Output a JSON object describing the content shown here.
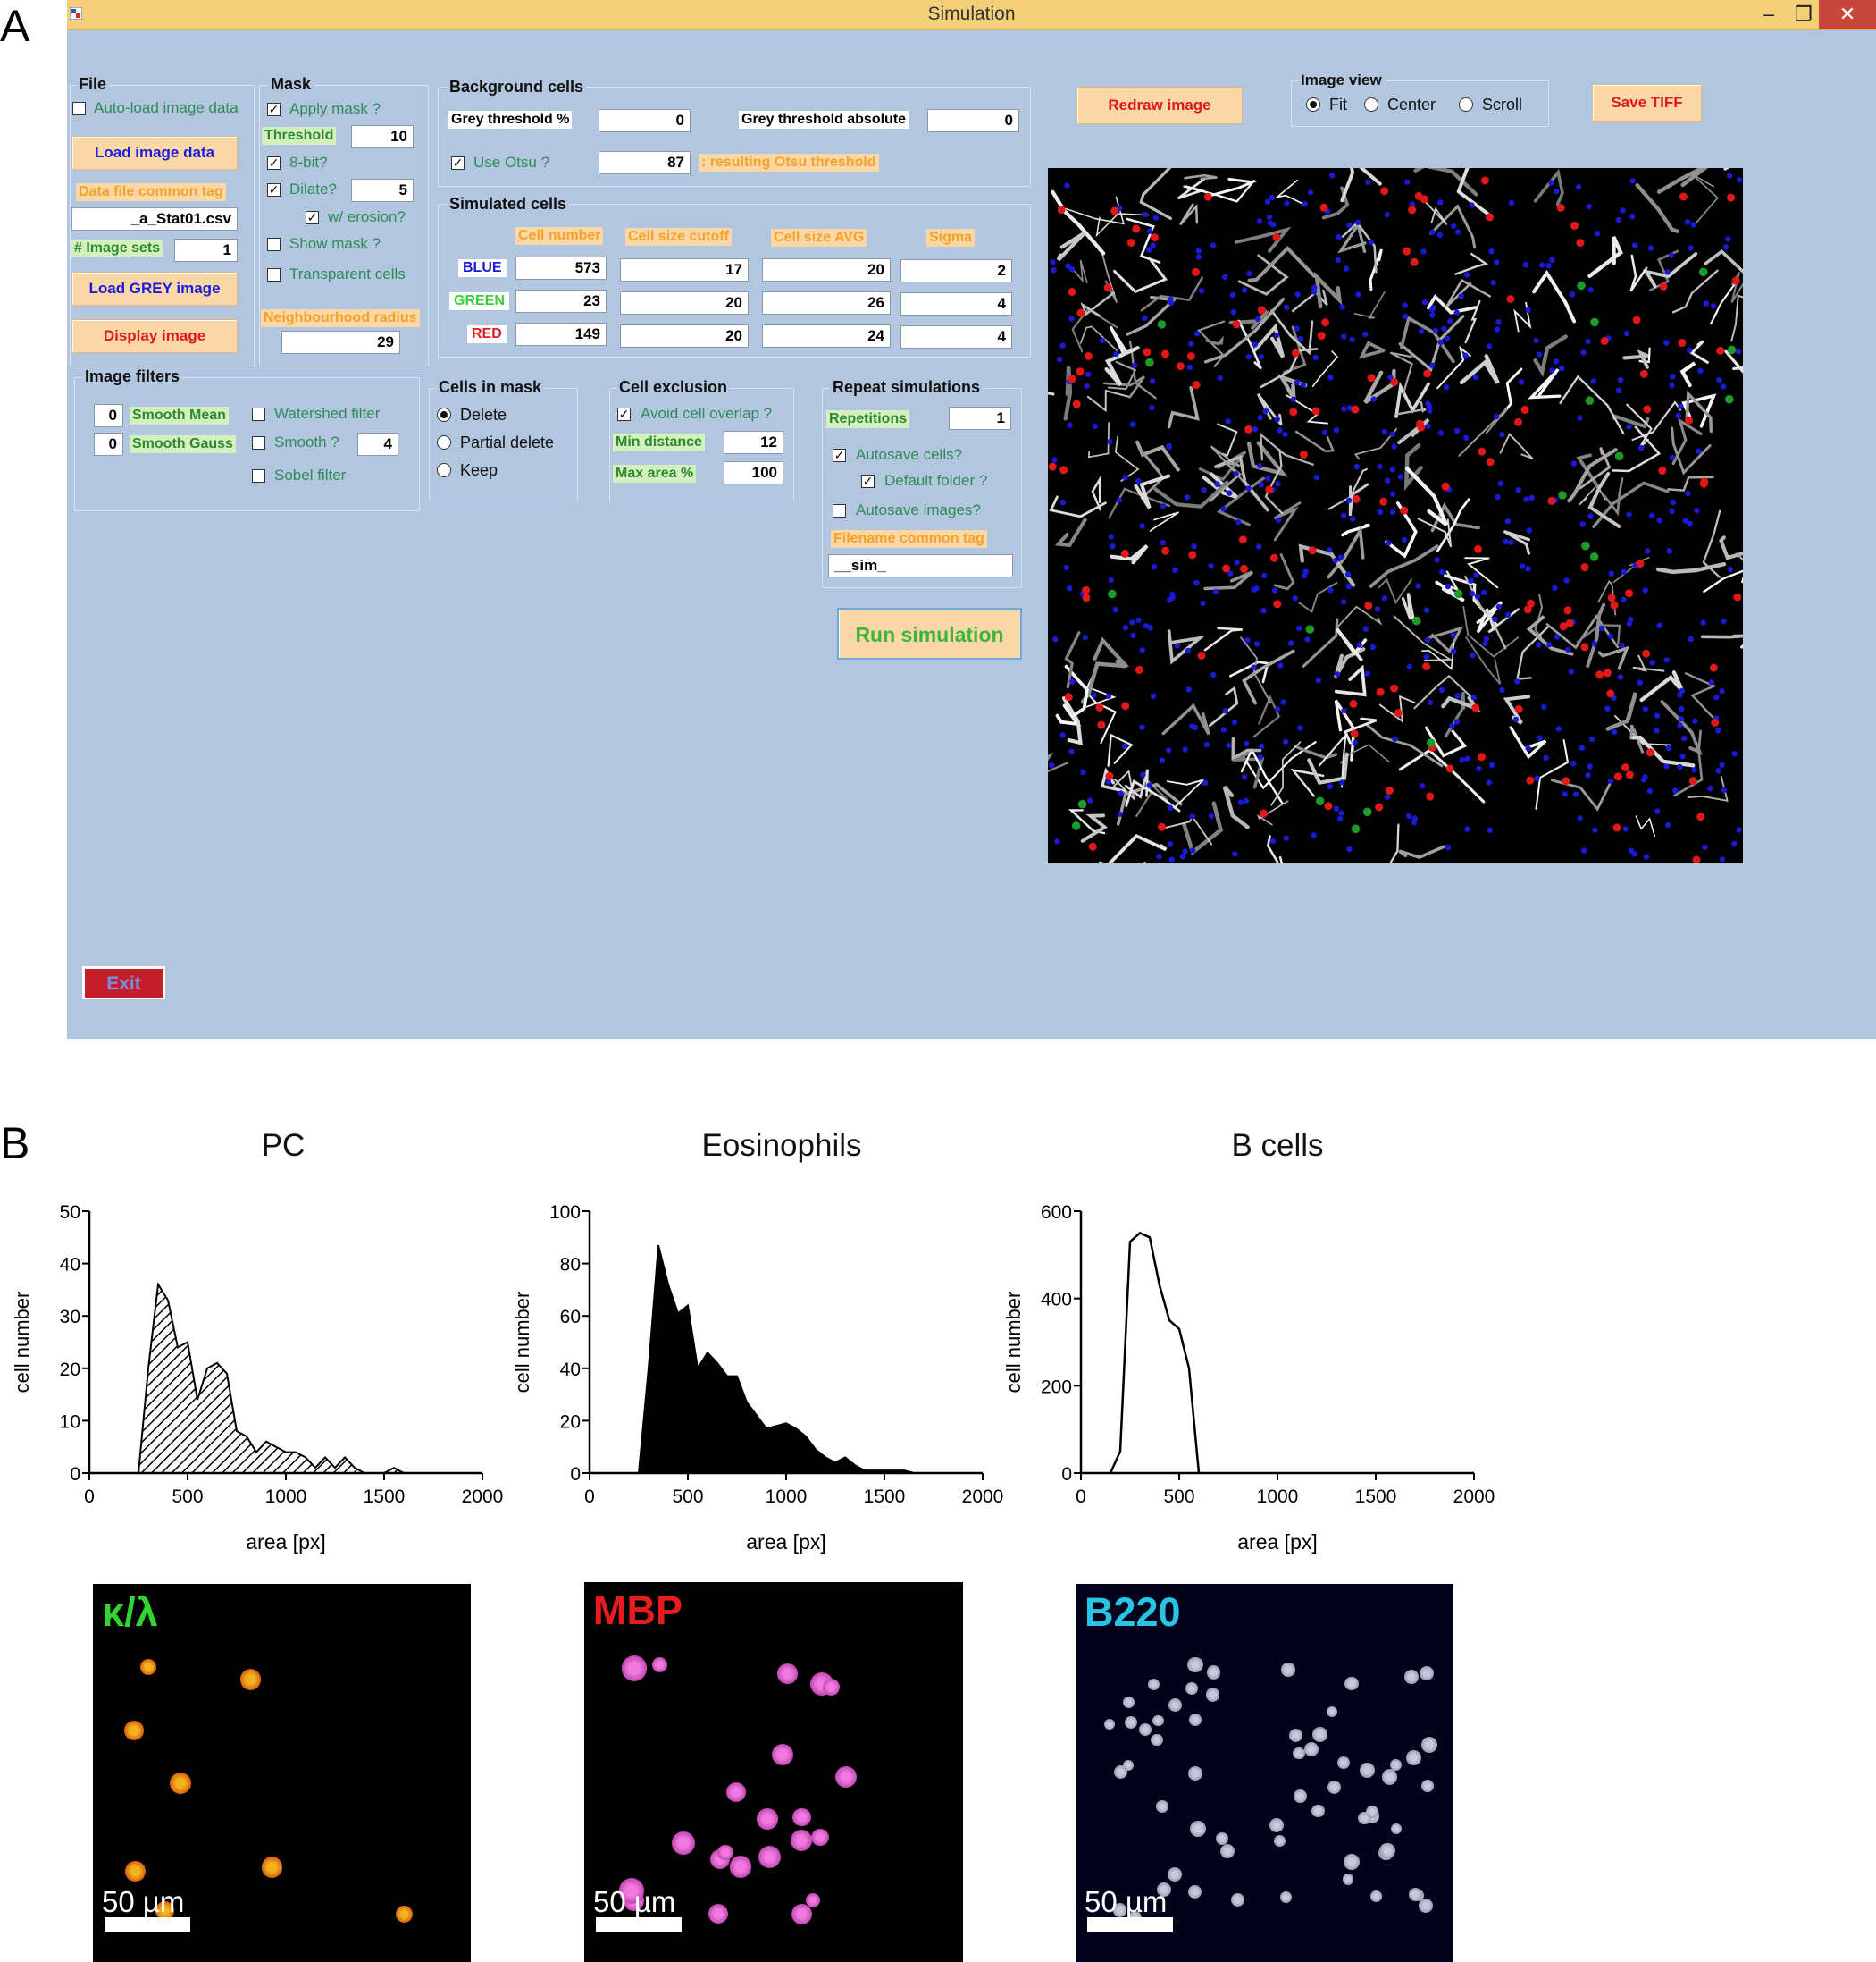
{
  "panel_labels": {
    "a": "A",
    "b": "B"
  },
  "window": {
    "title": "Simulation",
    "controls": {
      "minimize": "–",
      "restore": "❐",
      "close": "✕"
    }
  },
  "file": {
    "label": "File",
    "autoload_label": "Auto-load image data",
    "autoload_checked": false,
    "load_image_data": "Load image data",
    "data_file_tag_label": "Data file common tag",
    "data_file_tag_value": "_a_Stat01.csv",
    "image_sets_label": "# Image sets",
    "image_sets_value": "1",
    "load_grey": "Load GREY image",
    "display_image": "Display image"
  },
  "mask": {
    "label": "Mask",
    "apply_mask": "Apply mask ?",
    "threshold_label": "Threshold",
    "threshold_value": "10",
    "eight_bit": "8-bit?",
    "dilate": "Dilate?",
    "dilate_value": "5",
    "erosion": "w/ erosion?",
    "show_mask": "Show mask ?",
    "transparent_cells": "Transparent cells",
    "neighbourhood_label": "Neighbourhood radius",
    "neighbourhood_value": "29"
  },
  "background": {
    "label": "Background cells",
    "grey_pct_label": "Grey threshold %",
    "grey_pct_value": "0",
    "grey_abs_label": "Grey threshold absolute",
    "grey_abs_value": "0",
    "use_otsu": "Use Otsu ?",
    "otsu_value": "87",
    "otsu_result_label": ": resulting Otsu threshold"
  },
  "simulated": {
    "label": "Simulated cells",
    "headers": [
      "Cell number",
      "Cell size cutoff",
      "Cell size AVG",
      "Sigma"
    ],
    "rows": [
      {
        "name": "BLUE",
        "color": "#1a1ad0",
        "values": [
          "573",
          "17",
          "20",
          "2"
        ]
      },
      {
        "name": "GREEN",
        "color": "#3ccc3c",
        "values": [
          "23",
          "20",
          "26",
          "4"
        ]
      },
      {
        "name": "RED",
        "color": "#e01a1a",
        "values": [
          "149",
          "20",
          "24",
          "4"
        ]
      }
    ]
  },
  "image_filters": {
    "label": "Image filters",
    "smooth_mean_value": "0",
    "smooth_mean_label": "Smooth Mean",
    "smooth_gauss_value": "0",
    "smooth_gauss_label": "Smooth Gauss",
    "watershed": "Watershed filter",
    "smooth": "Smooth ?",
    "smooth_value": "4",
    "sobel": "Sobel filter"
  },
  "cells_in_mask": {
    "label": "Cells in mask",
    "options": [
      "Delete",
      "Partial delete",
      "Keep"
    ],
    "selected": "Delete"
  },
  "cell_exclusion": {
    "label": "Cell exclusion",
    "avoid_overlap": "Avoid cell overlap ?",
    "min_distance_label": "Min distance",
    "min_distance_value": "12",
    "max_area_label": "Max area %",
    "max_area_value": "100"
  },
  "repeat": {
    "label": "Repeat simulations",
    "repetitions_label": "Repetitions",
    "repetitions_value": "1",
    "autosave_cells": "Autosave cells?",
    "default_folder": "Default folder ?",
    "autosave_images": "Autosave images?",
    "filename_tag_label": "Filename common tag",
    "filename_tag_value": "__sim_",
    "run": "Run simulation"
  },
  "toolbar": {
    "redraw": "Redraw image",
    "image_view_label": "Image view",
    "view_options": [
      "Fit",
      "Center",
      "Scroll"
    ],
    "view_selected": "Fit",
    "save_tiff": "Save TIFF"
  },
  "exit": "Exit",
  "chart_data": [
    {
      "type": "area",
      "title": "PC",
      "xlabel": "area [px]",
      "ylabel": "cell number",
      "xlim": [
        0,
        2000
      ],
      "ylim": [
        0,
        50
      ],
      "xticks": [
        0,
        500,
        1000,
        1500,
        2000
      ],
      "yticks": [
        0,
        10,
        20,
        30,
        40,
        50
      ],
      "fill": "hatched",
      "x": [
        250,
        300,
        350,
        400,
        450,
        500,
        550,
        600,
        650,
        700,
        750,
        800,
        850,
        900,
        950,
        1000,
        1050,
        1100,
        1150,
        1200,
        1250,
        1300,
        1350,
        1400,
        1450,
        1500,
        1550,
        1600
      ],
      "y": [
        0,
        20,
        36,
        33,
        24,
        25,
        14,
        20,
        21,
        19,
        8,
        7,
        4,
        6,
        5,
        4,
        4,
        3,
        1,
        3,
        1,
        3,
        1,
        0,
        0,
        0,
        1,
        0
      ]
    },
    {
      "type": "area",
      "title": "Eosinophils",
      "xlabel": "area [px]",
      "ylabel": "cell number",
      "xlim": [
        0,
        2000
      ],
      "ylim": [
        0,
        100
      ],
      "xticks": [
        0,
        500,
        1000,
        1500,
        2000
      ],
      "yticks": [
        0,
        20,
        40,
        60,
        80,
        100
      ],
      "fill": "solid",
      "x": [
        0,
        250,
        300,
        350,
        400,
        450,
        500,
        550,
        600,
        650,
        700,
        750,
        800,
        850,
        900,
        950,
        1000,
        1050,
        1100,
        1150,
        1200,
        1250,
        1300,
        1350,
        1400,
        1450,
        1500,
        1550,
        1600,
        1650,
        1700
      ],
      "y": [
        0,
        0,
        40,
        87,
        72,
        61,
        64,
        40,
        46,
        42,
        37,
        37,
        27,
        22,
        17,
        18,
        19,
        17,
        14,
        9,
        6,
        4,
        6,
        3,
        1,
        1,
        1,
        1,
        1,
        0,
        0
      ]
    },
    {
      "type": "line",
      "title": "B cells",
      "xlabel": "area [px]",
      "ylabel": "cell number",
      "xlim": [
        0,
        2000
      ],
      "ylim": [
        0,
        600
      ],
      "xticks": [
        0,
        500,
        1000,
        1500,
        2000
      ],
      "yticks": [
        0,
        200,
        400,
        600
      ],
      "fill": "none",
      "x": [
        150,
        200,
        250,
        300,
        350,
        400,
        450,
        500,
        550,
        600
      ],
      "y": [
        0,
        50,
        530,
        550,
        540,
        430,
        350,
        330,
        240,
        0
      ]
    }
  ],
  "micrographs": [
    {
      "label": "κ/λ",
      "label_color": "#2fd62f",
      "scale": "50 µm"
    },
    {
      "label": "MBP",
      "label_color": "#e81c1c",
      "scale": "50 µm"
    },
    {
      "label": "B220",
      "label_color": "#27c4e6",
      "scale": "50 µm"
    }
  ]
}
